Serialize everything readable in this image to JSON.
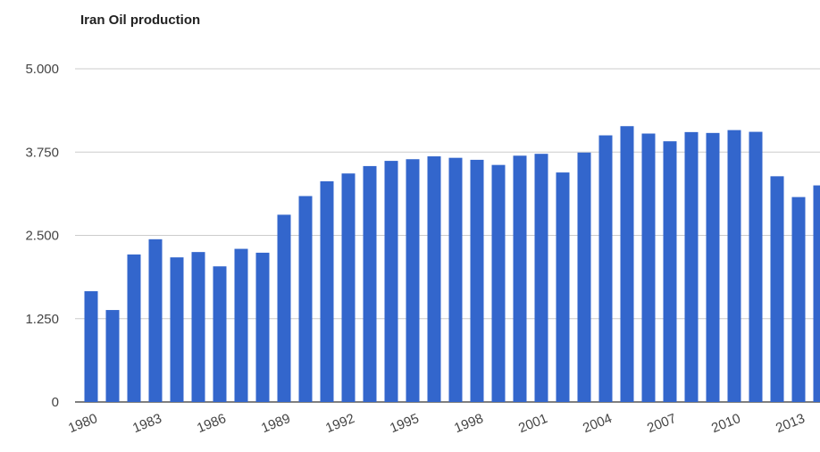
{
  "chart_data": {
    "type": "bar",
    "title": "Iran Oil production",
    "categories": [
      "1980",
      "1981",
      "1982",
      "1983",
      "1984",
      "1985",
      "1986",
      "1987",
      "1988",
      "1989",
      "1990",
      "1991",
      "1992",
      "1993",
      "1994",
      "1995",
      "1996",
      "1997",
      "1998",
      "1999",
      "2000",
      "2001",
      "2002",
      "2003",
      "2004",
      "2005",
      "2006",
      "2007",
      "2008",
      "2009",
      "2010",
      "2011",
      "2012",
      "2013",
      "2014"
    ],
    "x_tick_labels": [
      "1980",
      "1983",
      "1986",
      "1989",
      "1992",
      "1995",
      "1998",
      "2001",
      "2004",
      "2007",
      "2010",
      "2013"
    ],
    "values": [
      1662,
      1380,
      2214,
      2442,
      2170,
      2250,
      2035,
      2298,
      2240,
      2810,
      3090,
      3312,
      3429,
      3540,
      3618,
      3643,
      3686,
      3664,
      3634,
      3557,
      3696,
      3724,
      3444,
      3743,
      4001,
      4139,
      4028,
      3912,
      4050,
      4037,
      4080,
      4054,
      3387,
      3075,
      3250
    ],
    "ylim": [
      0,
      5000
    ],
    "y_tick_labels": [
      "0",
      "1.250",
      "2.500",
      "3.750",
      "5.000"
    ],
    "y_tick_values": [
      0,
      1250,
      2500,
      3750,
      5000
    ],
    "bar_color": "#3366cc",
    "grid": true,
    "legend": "none"
  }
}
